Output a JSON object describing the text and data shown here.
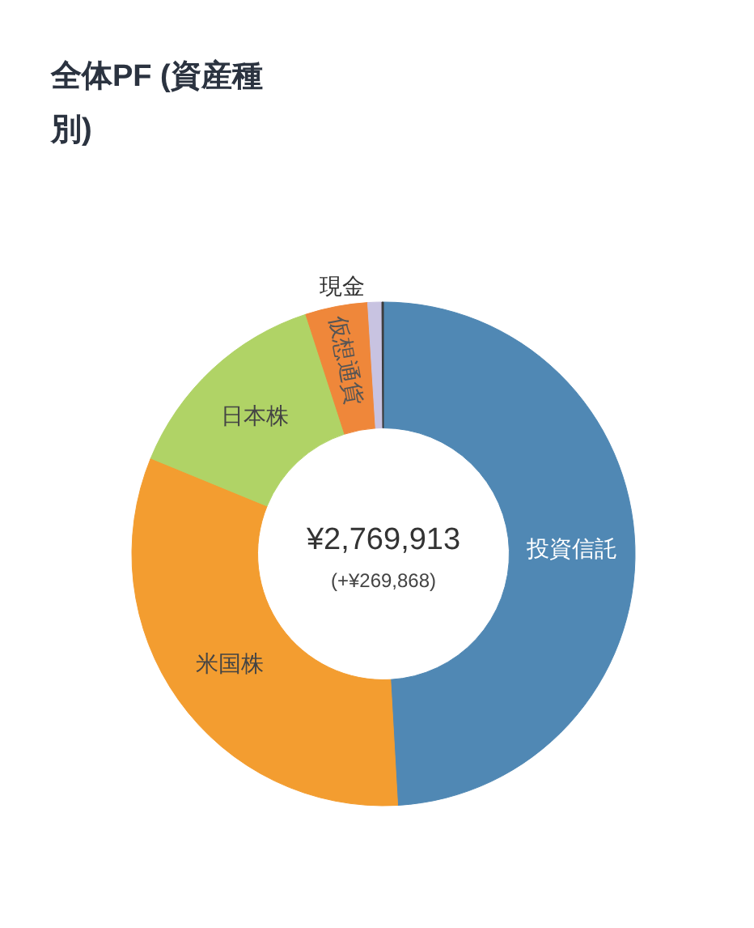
{
  "chart_data": {
    "type": "donut",
    "title": "全体PF (資産種別)",
    "categories": [
      "投資信託",
      "米国株",
      "日本株",
      "仮想通貨",
      "現金",
      null
    ],
    "values": [
      49.1,
      32.1,
      13.8,
      4.0,
      0.9,
      0.1
    ],
    "colors": [
      "#5088b4",
      "#f39d30",
      "#b0d366",
      "#ef873a",
      "#c8c3e1",
      "#3a3a3a"
    ],
    "annotations": [
      "¥2,769,913",
      "(+¥269,868)"
    ]
  }
}
